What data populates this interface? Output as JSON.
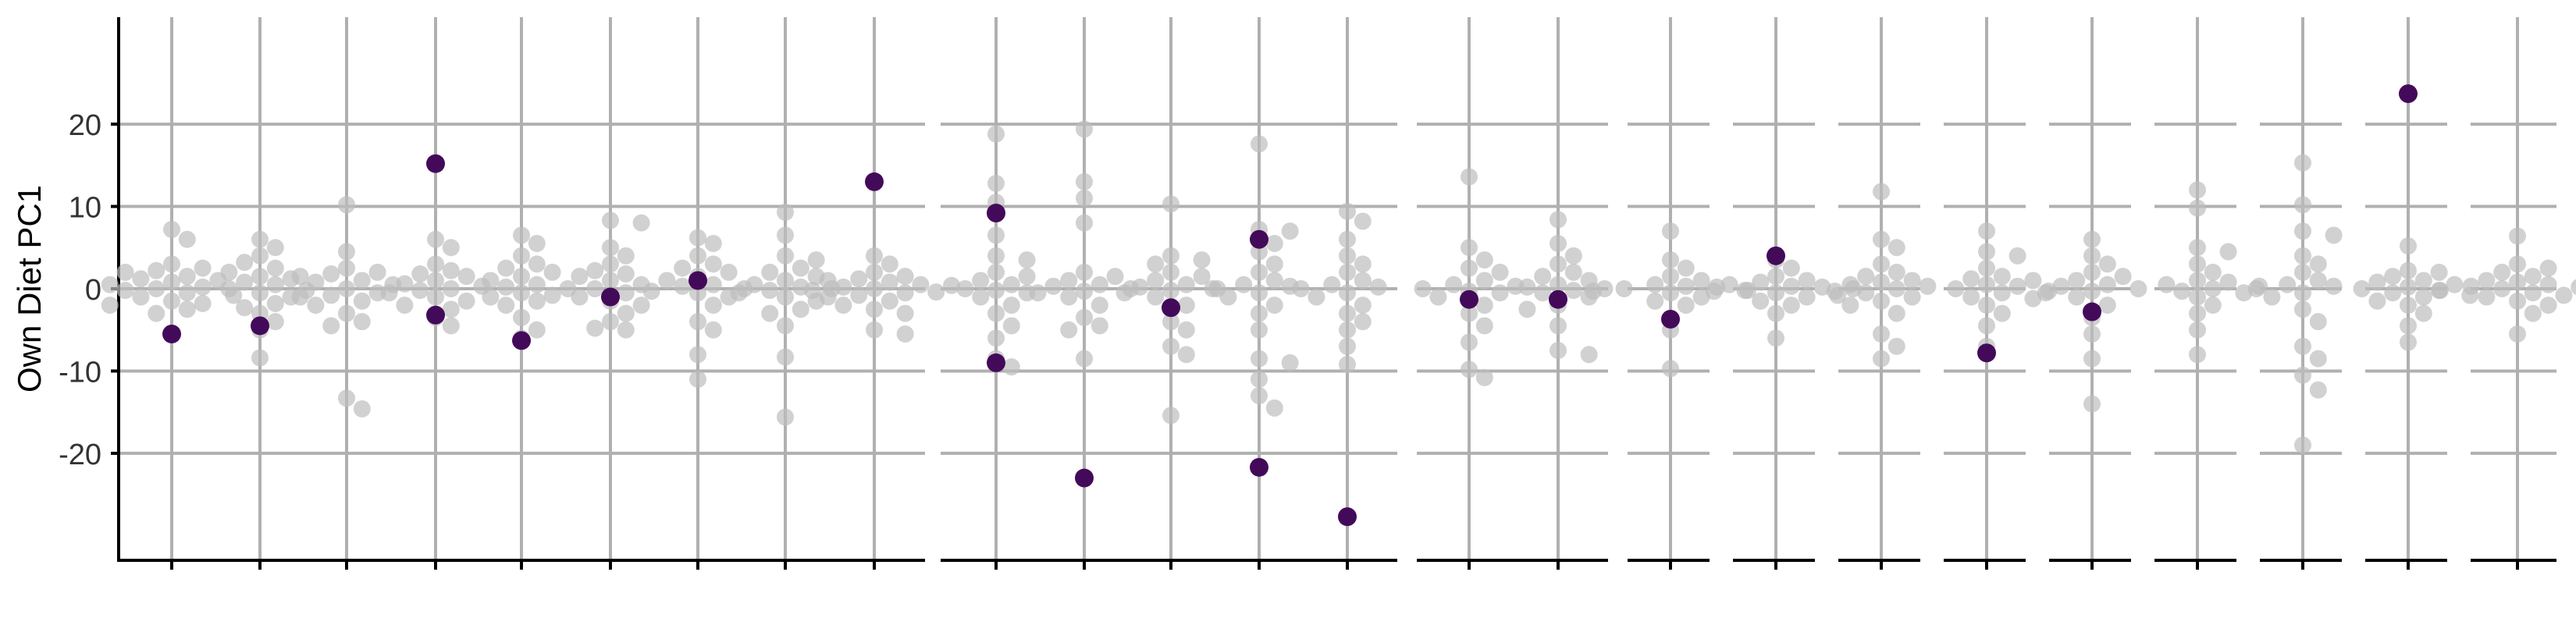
{
  "chart_data": {
    "type": "scatter",
    "title": "",
    "ylabel": "Own Diet PC1",
    "xlabel": "",
    "y_ticks": [
      -20,
      -10,
      0,
      10,
      20
    ],
    "y_tick_labels": [
      "-20",
      "-10",
      "0",
      "10",
      "20"
    ],
    "ylim": [
      -33,
      33
    ],
    "grid": true,
    "legend": "none",
    "colors": {
      "background_points": "#bdbdbd",
      "highlight_points": "#440a5a",
      "grid": "#b0b0b0",
      "axis": "#000000"
    },
    "panels": [
      {
        "categories": 9,
        "highlight": [
          [
            {
              "i": 0,
              "y": -5.5
            }
          ],
          [
            {
              "i": 1,
              "y": -4.5
            }
          ],
          [],
          [
            {
              "i": 3,
              "y": 15.2
            },
            {
              "i": 3,
              "y": -3.2
            }
          ],
          [
            {
              "i": 4,
              "y": -6.3
            }
          ],
          [
            {
              "i": 5,
              "y": -1.0
            }
          ],
          [
            {
              "i": 6,
              "y": 1.0
            }
          ],
          [],
          [
            {
              "i": 8,
              "y": 13.0
            }
          ]
        ],
        "background": [
          [
            7.2,
            6.0,
            3.0,
            2.2,
            2.0,
            1.5,
            1.0,
            0.5,
            0.2,
            0.0,
            -0.2,
            -0.5,
            -1.0,
            -1.5,
            -2.0,
            -2.5,
            -3.0,
            1.2,
            0.8,
            -0.8,
            2.5,
            -1.8
          ],
          [
            6.0,
            5.0,
            4.0,
            3.2,
            2.5,
            2.0,
            1.2,
            0.8,
            0.5,
            0.0,
            -0.5,
            -1.0,
            -1.8,
            -2.3,
            -3.0,
            -4.0,
            -5.0,
            -8.4,
            1.5,
            -0.2
          ],
          [
            10.2,
            4.5,
            2.5,
            2.0,
            1.5,
            1.0,
            0.5,
            0.0,
            -0.5,
            -1.0,
            -1.5,
            -2.0,
            -3.0,
            -4.0,
            -4.5,
            -13.3,
            -14.6,
            0.8,
            -0.8,
            1.8
          ],
          [
            6.0,
            5.0,
            3.0,
            2.2,
            1.5,
            1.0,
            0.6,
            0.0,
            -0.5,
            -1.0,
            -1.5,
            -2.0,
            -2.5,
            -3.5,
            -4.5,
            1.8,
            -0.2,
            0.3
          ],
          [
            6.5,
            5.5,
            4.0,
            3.0,
            2.0,
            1.5,
            1.0,
            0.5,
            0.0,
            -0.5,
            -1.0,
            -1.5,
            -2.0,
            -3.5,
            -5.0,
            -6.0,
            0.2,
            2.5,
            -0.8
          ],
          [
            8.3,
            8.0,
            5.0,
            4.0,
            3.0,
            2.2,
            1.5,
            1.0,
            0.5,
            0.0,
            -0.5,
            -1.0,
            -2.0,
            -3.0,
            -4.0,
            -4.8,
            -5.0,
            1.8,
            -1.5
          ],
          [
            6.2,
            5.5,
            4.0,
            3.0,
            2.5,
            2.0,
            1.5,
            1.0,
            0.5,
            0.0,
            -0.5,
            -1.0,
            -2.0,
            -4.0,
            -5.0,
            -8.0,
            -11.0,
            0.3,
            -0.3
          ],
          [
            9.3,
            6.5,
            4.0,
            3.5,
            2.5,
            2.0,
            1.5,
            1.0,
            0.5,
            0.0,
            -0.5,
            -1.0,
            -1.5,
            -2.5,
            -3.0,
            -4.5,
            -8.3,
            -15.6,
            0.2,
            -0.2
          ],
          [
            4.0,
            3.0,
            2.0,
            1.5,
            1.0,
            0.5,
            0.2,
            0.0,
            -0.2,
            -0.5,
            -1.0,
            -1.5,
            -2.0,
            -2.5,
            -3.0,
            -5.0,
            -5.5,
            0.8,
            -0.8,
            0.4,
            -0.4,
            1.2
          ]
        ]
      },
      {
        "categories": 5,
        "highlight": [
          [
            {
              "i": 0,
              "y": 9.2
            },
            {
              "i": 0,
              "y": -9.0
            }
          ],
          [
            {
              "i": 1,
              "y": -23.0
            }
          ],
          [
            {
              "i": 2,
              "y": -2.3
            }
          ],
          [
            {
              "i": 3,
              "y": 6.0
            },
            {
              "i": 3,
              "y": -21.7
            }
          ],
          [
            {
              "i": 4,
              "y": -27.7
            }
          ]
        ],
        "background": [
          [
            18.8,
            12.8,
            10.5,
            6.5,
            4.0,
            3.5,
            2.0,
            1.0,
            0.5,
            0.0,
            -0.5,
            -1.0,
            -2.0,
            -3.0,
            -4.5,
            -6.0,
            -8.5,
            -9.5,
            1.5,
            -0.2
          ],
          [
            19.4,
            13.0,
            11.0,
            8.0,
            2.0,
            1.5,
            1.0,
            0.5,
            0.0,
            -0.5,
            -1.0,
            -2.0,
            -3.5,
            -4.5,
            -5.0,
            -8.5,
            0.3,
            -0.3
          ],
          [
            10.3,
            4.0,
            3.5,
            3.0,
            2.0,
            1.5,
            1.0,
            0.5,
            0.0,
            -0.5,
            -1.0,
            -2.0,
            -4.0,
            -5.0,
            -7.0,
            -8.0,
            -15.4,
            0.2,
            -0.2
          ],
          [
            17.6,
            7.2,
            7.0,
            5.5,
            4.5,
            3.0,
            2.0,
            1.0,
            0.5,
            0.0,
            -0.5,
            -1.0,
            -2.0,
            -3.0,
            -5.0,
            -8.5,
            -9.0,
            -11.0,
            -13.0,
            -14.5,
            0.3
          ],
          [
            9.4,
            8.2,
            6.0,
            4.0,
            3.0,
            2.0,
            1.0,
            0.5,
            0.0,
            -0.5,
            -1.0,
            -2.0,
            -3.0,
            -4.0,
            -5.0,
            -7.0,
            -9.2,
            0.2
          ]
        ]
      },
      {
        "categories": 2,
        "highlight": [
          [
            {
              "i": 0,
              "y": -1.3
            }
          ],
          [
            {
              "i": 1,
              "y": -1.3
            }
          ]
        ],
        "background": [
          [
            13.6,
            5.0,
            3.5,
            2.5,
            2.0,
            1.0,
            0.5,
            0.0,
            -0.5,
            -1.0,
            -2.0,
            -3.0,
            -4.5,
            -6.5,
            -9.8,
            -10.8,
            0.3,
            -0.3
          ],
          [
            8.4,
            5.5,
            4.0,
            3.0,
            2.0,
            1.5,
            1.0,
            0.5,
            0.0,
            -0.5,
            -1.0,
            -2.0,
            -2.5,
            -4.5,
            -7.5,
            -8.0,
            0.2,
            -0.2
          ]
        ]
      },
      {
        "categories": 1,
        "highlight": [
          [
            {
              "i": 0,
              "y": -3.7
            }
          ]
        ],
        "background": [
          [
            7.0,
            3.5,
            2.5,
            1.5,
            1.0,
            0.5,
            0.2,
            0.0,
            -0.2,
            -0.5,
            -1.0,
            -1.5,
            -2.0,
            -5.0,
            -9.7,
            0.3,
            -0.3
          ]
        ]
      },
      {
        "categories": 1,
        "highlight": [
          [
            {
              "i": 0,
              "y": 4.0
            }
          ]
        ],
        "background": [
          [
            3.5,
            2.5,
            1.5,
            1.0,
            0.5,
            0.2,
            0.0,
            -0.2,
            -0.5,
            -1.0,
            -1.5,
            -2.0,
            -3.0,
            -6.0,
            0.3,
            -0.3,
            0.8,
            -0.8
          ]
        ]
      },
      {
        "categories": 1,
        "highlight": [
          []
        ],
        "background": [
          [
            11.8,
            6.0,
            5.0,
            3.0,
            2.0,
            1.5,
            1.0,
            0.5,
            0.0,
            -0.5,
            -1.0,
            -1.5,
            -2.0,
            -3.0,
            -5.5,
            -7.0,
            -8.5,
            0.3,
            -0.3,
            0.8
          ]
        ]
      },
      {
        "categories": 1,
        "highlight": [
          [
            {
              "i": 0,
              "y": -7.8
            }
          ]
        ],
        "background": [
          [
            7.0,
            4.5,
            4.0,
            2.5,
            1.5,
            1.0,
            0.5,
            0.0,
            -0.5,
            -1.0,
            -2.0,
            -3.0,
            -4.5,
            -7.0,
            0.3,
            -0.3,
            1.2,
            -1.2
          ]
        ]
      },
      {
        "categories": 1,
        "highlight": [
          [
            {
              "i": 0,
              "y": -2.8
            }
          ]
        ],
        "background": [
          [
            6.0,
            4.0,
            3.0,
            2.0,
            1.5,
            1.0,
            0.5,
            0.0,
            -0.5,
            -1.0,
            -2.0,
            -3.5,
            -5.5,
            -8.5,
            -14.0,
            0.3,
            -0.3
          ]
        ]
      },
      {
        "categories": 1,
        "highlight": [
          []
        ],
        "background": [
          [
            12.0,
            9.8,
            5.0,
            4.5,
            3.0,
            2.0,
            1.0,
            0.5,
            0.0,
            -0.5,
            -1.0,
            -2.0,
            -3.0,
            -5.0,
            -8.0,
            0.3,
            -0.3,
            0.8
          ]
        ]
      },
      {
        "categories": 1,
        "highlight": [
          []
        ],
        "background": [
          [
            15.3,
            10.2,
            7.0,
            6.5,
            4.0,
            3.0,
            2.0,
            1.0,
            0.5,
            0.0,
            -0.5,
            -1.0,
            -2.5,
            -4.0,
            -7.0,
            -8.5,
            -10.5,
            -12.3,
            -19.0,
            0.3
          ]
        ]
      },
      {
        "categories": 1,
        "highlight": [
          [
            {
              "i": 0,
              "y": 23.7
            }
          ]
        ],
        "background": [
          [
            5.2,
            2.2,
            2.0,
            1.5,
            1.0,
            0.5,
            0.2,
            0.0,
            -0.2,
            -0.5,
            -1.0,
            -1.5,
            -2.0,
            -3.0,
            -4.5,
            -6.5,
            0.8,
            -0.8
          ]
        ]
      },
      {
        "categories": 1,
        "highlight": [
          []
        ],
        "background": [
          [
            6.4,
            3.0,
            2.5,
            2.0,
            1.5,
            1.0,
            0.5,
            0.2,
            0.0,
            -0.2,
            -0.5,
            -1.0,
            -1.5,
            -2.0,
            -3.0,
            -5.5,
            0.8,
            -0.8,
            0.3,
            -0.3
          ]
        ]
      }
    ]
  }
}
